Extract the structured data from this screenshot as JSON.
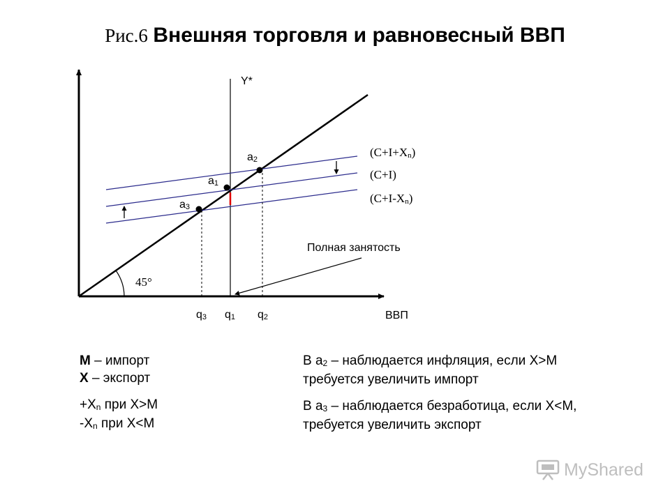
{
  "title": {
    "prefix": "Рис.6",
    "main": "Внешняя торговля и равновесный ВВП"
  },
  "diagram": {
    "y_axis_label": "Y*",
    "x_axis_label": "ВВП",
    "angle_label": "45°",
    "full_employment_label": "Полная занятость",
    "lines": {
      "c_i_xn": {
        "pre": "(C+I+X",
        "sub": "n",
        "post": ")"
      },
      "c_i": {
        "text": "(C+I)"
      },
      "c_i_minus_xn": {
        "pre": "(C+I-X",
        "sub": "n",
        "post": ")"
      }
    },
    "points": {
      "a1": {
        "base": "a",
        "sub": "1"
      },
      "a2": {
        "base": "a",
        "sub": "2"
      },
      "a3": {
        "base": "a",
        "sub": "3"
      }
    },
    "ticks": {
      "q3": {
        "base": "q",
        "sub": "3"
      },
      "q1": {
        "base": "q",
        "sub": "1"
      },
      "q2": {
        "base": "q",
        "sub": "2"
      }
    },
    "colors": {
      "lines": "#2b2b8c",
      "axes": "#000000",
      "gap_marker": "#e00000"
    }
  },
  "legend": {
    "left": {
      "m_label": "М",
      "m_desc": " – импорт",
      "x_label": "Х",
      "x_desc": " – экспорт",
      "plus_pre": "+X",
      "plus_sub": "n",
      "plus_post": " при Х>М",
      "minus_pre": "-X",
      "minus_sub": "n",
      "minus_post": " при Х<М"
    },
    "right": {
      "line1_pre": "В а",
      "line1_sub": "2",
      "line1_post": " – наблюдается инфляция, если Х>М",
      "line2": "требуется увеличить импорт",
      "line3_pre": "В а",
      "line3_sub": "3",
      "line3_post": " – наблюдается безработица, если Х<М,",
      "line4": "требуется увеличить экспорт"
    }
  },
  "watermark": {
    "text": "MyShared",
    "icon": "presentation-board-icon"
  }
}
